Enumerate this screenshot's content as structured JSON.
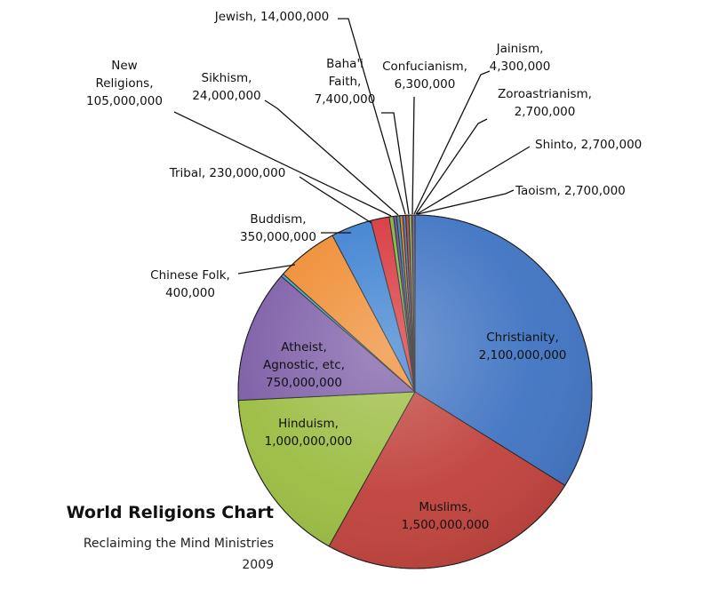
{
  "chart_data": {
    "type": "pie",
    "title": "World Religions Chart",
    "subtitle": "Reclaiming the Mind Ministries",
    "year": "2009",
    "slices": [
      {
        "label": "Christianity",
        "value_label": "2,100,000,000",
        "value": 2100000000,
        "color": "#3f73c2"
      },
      {
        "label": "Muslims",
        "value_label": "1,500,000,000",
        "value": 1500000000,
        "color": "#c0403a"
      },
      {
        "label": "Hinduism",
        "value_label": "1,000,000,000",
        "value": 1000000000,
        "color": "#9bbc41"
      },
      {
        "label": "Atheist, Agnostic, etc",
        "value_label": "750,000,000",
        "value": 750000000,
        "color": "#7c5ca6"
      },
      {
        "label": "Chinese Folk",
        "value_label": "400,000",
        "value": 400000,
        "color": "#3ca3bf"
      },
      {
        "label": "Buddism",
        "value_label": "350,000,000",
        "value": 350000000,
        "color": "#ee8a2e"
      },
      {
        "label": "Tribal",
        "value_label": "230,000,000",
        "value": 230000000,
        "color": "#3a7fd0"
      },
      {
        "label": "New Religions",
        "value_label": "105,000,000",
        "value": 105000000,
        "color": "#d6343a"
      },
      {
        "label": "Sikhism",
        "value_label": "24,000,000",
        "value": 24000000,
        "color": "#7fb140"
      },
      {
        "label": "Jewish",
        "value_label": "14,000,000",
        "value": 14000000,
        "color": "#6a4a9c"
      },
      {
        "label": "Baha'i Faith",
        "value_label": "7,400,000",
        "value": 7400000,
        "color": "#2f8fae"
      },
      {
        "label": "Confucianism",
        "value_label": "6,300,000",
        "value": 6300000,
        "color": "#e07a24"
      },
      {
        "label": "Jainism",
        "value_label": "4,300,000",
        "value": 4300000,
        "color": "#4a6fae"
      },
      {
        "label": "Zoroastrianism",
        "value_label": "2,700,000",
        "value": 2700000,
        "color": "#b04848"
      },
      {
        "label": "Shinto",
        "value_label": "2,700,000",
        "value": 2700000,
        "color": "#8aa84a"
      },
      {
        "label": "Taoism",
        "value_label": "2,700,000",
        "value": 2700000,
        "color": "#6f5a95"
      }
    ]
  }
}
